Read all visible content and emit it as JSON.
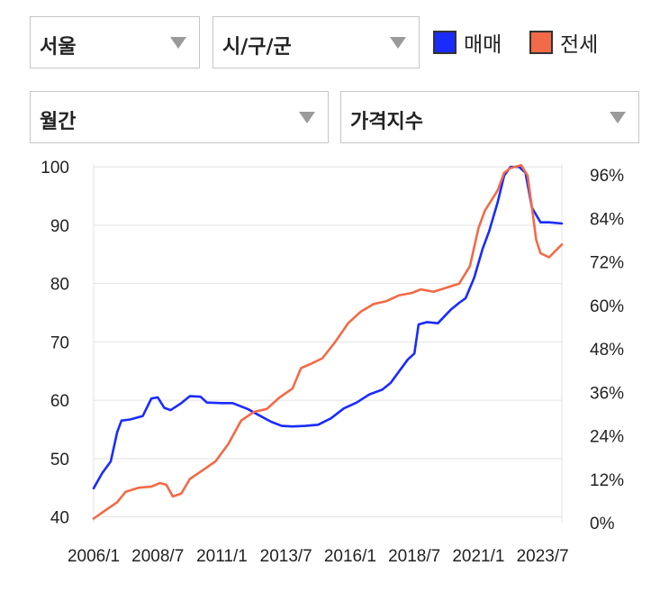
{
  "filters": {
    "region": "서울",
    "district": "시/구/군",
    "period": "월간",
    "metric": "가격지수"
  },
  "legend": [
    {
      "label": "매매",
      "color": "#1a2bff"
    },
    {
      "label": "전세",
      "color": "#f26a47"
    }
  ],
  "chart_data": {
    "type": "line",
    "x_ticks": [
      "2006/1",
      "2008/7",
      "2011/1",
      "2013/7",
      "2016/1",
      "2018/7",
      "2021/1",
      "2023/7"
    ],
    "y_left_ticks": [
      "100",
      "90",
      "80",
      "70",
      "60",
      "50",
      "40"
    ],
    "y_right_ticks": [
      "96%",
      "84%",
      "72%",
      "60%",
      "48%",
      "36%",
      "24%",
      "12%",
      "0%"
    ],
    "ylim_left": [
      39,
      100.5
    ],
    "grid": true,
    "series": [
      {
        "name": "매매",
        "color": "#1a2bff",
        "points": [
          [
            "2006-01",
            44.9
          ],
          [
            "2006-05",
            47.5
          ],
          [
            "2006-09",
            49.5
          ],
          [
            "2006-12",
            54.5
          ],
          [
            "2007-02",
            56.5
          ],
          [
            "2007-06",
            56.7
          ],
          [
            "2007-12",
            57.3
          ],
          [
            "2008-04",
            60.3
          ],
          [
            "2008-07",
            60.5
          ],
          [
            "2008-10",
            58.7
          ],
          [
            "2009-01",
            58.3
          ],
          [
            "2009-06",
            59.5
          ],
          [
            "2009-10",
            60.7
          ],
          [
            "2010-03",
            60.6
          ],
          [
            "2010-06",
            59.6
          ],
          [
            "2011-01",
            59.5
          ],
          [
            "2011-06",
            59.5
          ],
          [
            "2012-01",
            58.5
          ],
          [
            "2012-06",
            57.5
          ],
          [
            "2012-12",
            56.3
          ],
          [
            "2013-05",
            55.6
          ],
          [
            "2013-10",
            55.5
          ],
          [
            "2014-04",
            55.6
          ],
          [
            "2014-10",
            55.8
          ],
          [
            "2015-04",
            56.9
          ],
          [
            "2015-10",
            58.6
          ],
          [
            "2016-04",
            59.6
          ],
          [
            "2016-10",
            61.0
          ],
          [
            "2017-04",
            61.8
          ],
          [
            "2017-08",
            63.0
          ],
          [
            "2017-12",
            65.0
          ],
          [
            "2018-04",
            67.0
          ],
          [
            "2018-07",
            68.0
          ],
          [
            "2018-09",
            73.0
          ],
          [
            "2019-01",
            73.4
          ],
          [
            "2019-06",
            73.2
          ],
          [
            "2019-12",
            75.5
          ],
          [
            "2020-04",
            76.7
          ],
          [
            "2020-07",
            77.5
          ],
          [
            "2020-11",
            81.0
          ],
          [
            "2021-03",
            86.0
          ],
          [
            "2021-06",
            89.0
          ],
          [
            "2021-10",
            94.0
          ],
          [
            "2022-01",
            98.5
          ],
          [
            "2022-04",
            100.0
          ],
          [
            "2022-08",
            100.0
          ],
          [
            "2022-11",
            99.0
          ],
          [
            "2023-02",
            93.0
          ],
          [
            "2023-06",
            90.5
          ],
          [
            "2023-10",
            90.5
          ],
          [
            "2024-04",
            90.3
          ]
        ]
      },
      {
        "name": "전세",
        "color": "#f26a47",
        "points": [
          [
            "2006-01",
            39.7
          ],
          [
            "2006-06",
            41.0
          ],
          [
            "2006-12",
            42.5
          ],
          [
            "2007-04",
            44.3
          ],
          [
            "2007-10",
            45.0
          ],
          [
            "2008-04",
            45.2
          ],
          [
            "2008-08",
            45.8
          ],
          [
            "2008-11",
            45.5
          ],
          [
            "2009-02",
            43.5
          ],
          [
            "2009-06",
            44.0
          ],
          [
            "2009-10",
            46.5
          ],
          [
            "2010-04",
            48.0
          ],
          [
            "2010-10",
            49.5
          ],
          [
            "2011-04",
            52.5
          ],
          [
            "2011-10",
            56.5
          ],
          [
            "2012-04",
            58.0
          ],
          [
            "2012-10",
            58.5
          ],
          [
            "2013-04",
            60.5
          ],
          [
            "2013-10",
            62.0
          ],
          [
            "2014-02",
            65.5
          ],
          [
            "2014-07",
            66.3
          ],
          [
            "2014-12",
            67.2
          ],
          [
            "2015-06",
            70.0
          ],
          [
            "2015-12",
            73.2
          ],
          [
            "2016-06",
            75.2
          ],
          [
            "2016-12",
            76.5
          ],
          [
            "2017-06",
            77.0
          ],
          [
            "2017-12",
            78.0
          ],
          [
            "2018-06",
            78.4
          ],
          [
            "2018-10",
            79.0
          ],
          [
            "2019-04",
            78.6
          ],
          [
            "2019-10",
            79.3
          ],
          [
            "2020-04",
            80.0
          ],
          [
            "2020-09",
            83.0
          ],
          [
            "2021-01",
            89.5
          ],
          [
            "2021-04",
            92.5
          ],
          [
            "2021-10",
            96.0
          ],
          [
            "2022-01",
            99.0
          ],
          [
            "2022-04",
            99.8
          ],
          [
            "2022-09",
            100.3
          ],
          [
            "2022-12",
            98.5
          ],
          [
            "2023-02",
            93.0
          ],
          [
            "2023-04",
            87.5
          ],
          [
            "2023-06",
            85.2
          ],
          [
            "2023-10",
            84.5
          ],
          [
            "2024-04",
            86.7
          ]
        ]
      }
    ]
  }
}
